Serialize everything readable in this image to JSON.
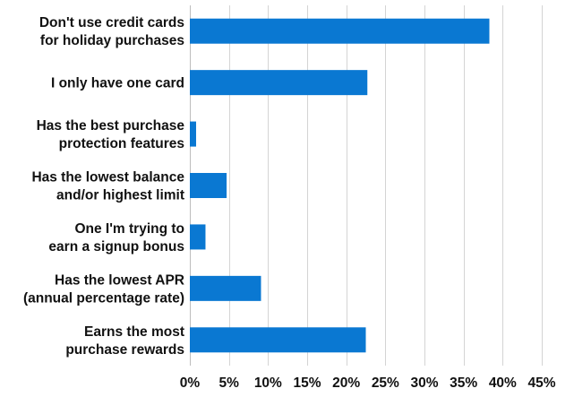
{
  "chart_data": {
    "type": "bar",
    "orientation": "horizontal",
    "categories": [
      [
        "Don't use credit cards",
        "for holiday purchases"
      ],
      [
        "I only have one card"
      ],
      [
        "Has the best purchase",
        "protection features"
      ],
      [
        "Has the lowest balance",
        "and/or highest limit"
      ],
      [
        "One I'm trying to",
        "earn a signup bonus"
      ],
      [
        "Has the lowest APR",
        "(annual percentage rate)"
      ],
      [
        "Earns the most",
        "purchase rewards"
      ]
    ],
    "values": [
      38.3,
      22.7,
      0.8,
      4.7,
      2.0,
      9.1,
      22.5
    ],
    "xlim": [
      0,
      45
    ],
    "xticks": [
      0,
      5,
      10,
      15,
      20,
      25,
      30,
      35,
      40,
      45
    ],
    "xtick_labels": [
      "0%",
      "5%",
      "10%",
      "15%",
      "20%",
      "25%",
      "30%",
      "35%",
      "40%",
      "45%"
    ],
    "grid": true,
    "bar_color": "#0a78d2",
    "title": "",
    "xlabel": "",
    "ylabel": ""
  }
}
